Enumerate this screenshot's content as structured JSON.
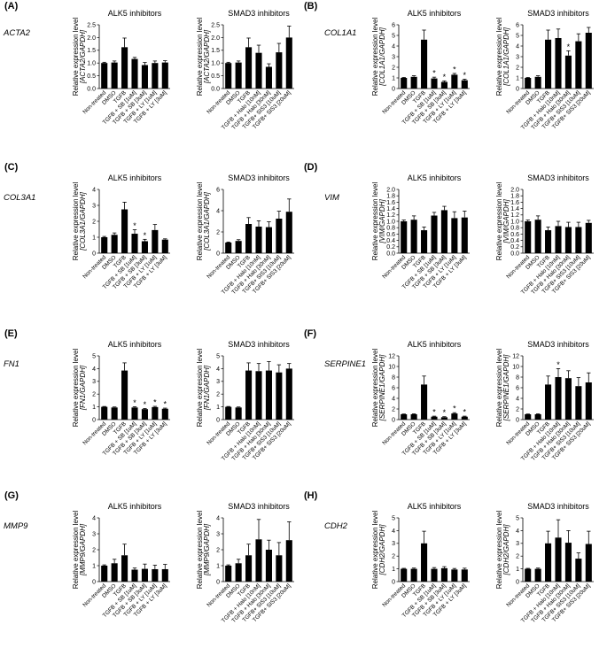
{
  "figure": {
    "ylabel_line1": "Relative expression level",
    "alk5_title": "ALK5 inhibitors",
    "smad3_title": "SMAD3 inhibitors"
  },
  "panels": [
    {
      "label": "(A)",
      "gene": "ACTA2",
      "ylabel": "[ACTA2/GAPDH]"
    },
    {
      "label": "(B)",
      "gene": "COL1A1",
      "ylabel": "[COL1A1/GAPDH]"
    },
    {
      "label": "(C)",
      "gene": "COL3A1",
      "ylabel": "[COL3A1/GAPDH]"
    },
    {
      "label": "(D)",
      "gene": "VIM",
      "ylabel": "[VIM/GAPDH]"
    },
    {
      "label": "(E)",
      "gene": "FN1",
      "ylabel": "[FN1/GAPDH]"
    },
    {
      "label": "(F)",
      "gene": "SERPINE1",
      "ylabel": "[SERPINE1/GAPDH]"
    },
    {
      "label": "(G)",
      "gene": "MMP9",
      "ylabel": "[MMP9/GAPDH]"
    },
    {
      "label": "(H)",
      "gene": "CDH2",
      "ylabel": "[CDH2/GAPDH]"
    }
  ],
  "chart_data": [
    {
      "type": "bar",
      "id": "A-ALK5",
      "title": "ALK5 inhibitors",
      "ylabel": "Relative expression level [ACTA2/GAPDH]",
      "ylim": [
        0,
        2.5
      ],
      "ticks": [
        0,
        0.5,
        1.0,
        1.5,
        2.0,
        2.5
      ],
      "categories": [
        "Non-treated",
        "DMSO",
        "TGFB",
        "TGFB + SB [1uM]",
        "TGFB + SB [3uM]",
        "TGFB + LY [1uM]",
        "TGFB + LY [3uM]"
      ],
      "values": [
        1.0,
        1.02,
        1.62,
        1.16,
        0.92,
        1.0,
        1.02
      ],
      "errors": [
        0.03,
        0.06,
        0.36,
        0.06,
        0.1,
        0.08,
        0.07
      ],
      "significant": [
        false,
        false,
        false,
        false,
        false,
        false,
        false
      ]
    },
    {
      "type": "bar",
      "id": "A-SMAD3",
      "title": "SMAD3 inhibitors",
      "ylabel": "Relative expression level [ACTA2/GAPDH]",
      "ylim": [
        0,
        2.5
      ],
      "ticks": [
        0,
        0.5,
        1.0,
        1.5,
        2.0,
        2.5
      ],
      "categories": [
        "Non-treated",
        "DMSO",
        "TGFB",
        "TGFB + Halo [10nM]",
        "TGFB + Halo [30nM]",
        "TGFB+ SIS3 [10uM]",
        "TGFB+ SIS3 [20uM]"
      ],
      "values": [
        1.0,
        1.02,
        1.62,
        1.4,
        0.85,
        1.42,
        2.0
      ],
      "errors": [
        0.03,
        0.06,
        0.36,
        0.3,
        0.12,
        0.35,
        0.45
      ],
      "significant": [
        false,
        false,
        false,
        false,
        false,
        false,
        false
      ]
    },
    {
      "type": "bar",
      "id": "B-ALK5",
      "title": "ALK5 inhibitors",
      "ylabel": "Relative expression level [COL1A1/GAPDH]",
      "ylim": [
        0,
        6
      ],
      "ticks": [
        0,
        1,
        2,
        3,
        4,
        5,
        6
      ],
      "categories": [
        "Non-treated",
        "DMSO",
        "TGFB",
        "TGFB + SB [1uM]",
        "TGFB + SB [3uM]",
        "TGFB + LY [1uM]",
        "TGFB + LY [3uM]"
      ],
      "values": [
        1.0,
        1.1,
        4.6,
        0.95,
        0.62,
        1.3,
        0.78
      ],
      "errors": [
        0.04,
        0.1,
        0.9,
        0.12,
        0.1,
        0.12,
        0.1
      ],
      "significant": [
        false,
        false,
        false,
        true,
        true,
        true,
        true
      ]
    },
    {
      "type": "bar",
      "id": "B-SMAD3",
      "title": "SMAD3 inhibitors",
      "ylabel": "Relative expression level [COL1A1/GAPDH]",
      "ylim": [
        0,
        6
      ],
      "ticks": [
        0,
        1,
        2,
        3,
        4,
        5,
        6
      ],
      "categories": [
        "Non-treated",
        "DMSO",
        "TGFB",
        "TGFB + Halo [10nM]",
        "TGFB + Halo [30nM]",
        "TGFB+ SIS3 [10uM]",
        "TGFB+ SIS3 [20uM]"
      ],
      "values": [
        1.0,
        1.1,
        4.6,
        4.75,
        3.1,
        4.45,
        5.25
      ],
      "errors": [
        0.04,
        0.1,
        0.9,
        0.85,
        0.45,
        0.7,
        0.5
      ],
      "significant": [
        false,
        false,
        false,
        false,
        true,
        false,
        false
      ]
    },
    {
      "type": "bar",
      "id": "C-ALK5",
      "title": "ALK5 inhibitors",
      "ylabel": "Relative expression level [COL3A1/GAPDH]",
      "ylim": [
        0,
        4
      ],
      "ticks": [
        0,
        1,
        2,
        3,
        4
      ],
      "categories": [
        "Non-treated",
        "DMSO",
        "TGFB",
        "TGFB + SB [1uM]",
        "TGFB + SB [3uM]",
        "TGFB + LY [1uM]",
        "TGFB + LY [3uM]"
      ],
      "values": [
        1.0,
        1.15,
        2.75,
        1.22,
        0.75,
        1.45,
        0.85
      ],
      "errors": [
        0.05,
        0.12,
        0.45,
        0.25,
        0.12,
        0.35,
        0.05
      ],
      "significant": [
        false,
        false,
        false,
        true,
        true,
        false,
        false
      ]
    },
    {
      "type": "bar",
      "id": "C-SMAD3",
      "title": "SMAD3 inhibitors",
      "ylabel": "Relative expression level [COL3A1/GAPDH]",
      "ylim": [
        0,
        6
      ],
      "ticks": [
        0,
        2,
        4,
        6
      ],
      "categories": [
        "Non-treated",
        "DMSO",
        "TGFB",
        "TGFB + Halo [10nM]",
        "TGFB + Halo [30nM]",
        "TGFB+ SIS3 [10uM]",
        "TGFB+ SIS3 [20uM]"
      ],
      "values": [
        1.0,
        1.15,
        2.75,
        2.5,
        2.45,
        3.25,
        3.9
      ],
      "errors": [
        0.05,
        0.12,
        0.6,
        0.55,
        0.5,
        0.7,
        1.2
      ],
      "significant": [
        false,
        false,
        false,
        false,
        false,
        false,
        false
      ]
    },
    {
      "type": "bar",
      "id": "D-ALK5",
      "title": "ALK5 inhibitors",
      "ylabel": "Relative expression level [VIM/GAPDH]",
      "ylim": [
        0,
        2.0
      ],
      "ticks": [
        0,
        0.2,
        0.4,
        0.6,
        0.8,
        1.0,
        1.2,
        1.4,
        1.6,
        1.8,
        2.0
      ],
      "categories": [
        "Non-treated",
        "DMSO",
        "TGFB",
        "TGFB + SB [1uM]",
        "TGFB + SB [3uM]",
        "TGFB + LY [1uM]",
        "TGFB + LY [3uM]"
      ],
      "values": [
        1.0,
        1.05,
        0.72,
        1.18,
        1.35,
        1.1,
        1.12
      ],
      "errors": [
        0.04,
        0.12,
        0.1,
        0.1,
        0.12,
        0.2,
        0.2
      ],
      "significant": [
        false,
        false,
        false,
        false,
        false,
        false,
        false
      ]
    },
    {
      "type": "bar",
      "id": "D-SMAD3",
      "title": "SMAD3 inhibitors",
      "ylabel": "Relative expression level [VIM/GAPDH]",
      "ylim": [
        0,
        2.0
      ],
      "ticks": [
        0,
        0.2,
        0.4,
        0.6,
        0.8,
        1.0,
        1.2,
        1.4,
        1.6,
        1.8,
        2.0
      ],
      "categories": [
        "Non-treated",
        "DMSO",
        "TGFB",
        "TGFB + Halo [10nM]",
        "TGFB + Halo [30nM]",
        "TGFB+ SIS3 [10uM]",
        "TGFB+ SIS3 [20uM]"
      ],
      "values": [
        1.0,
        1.05,
        0.72,
        0.85,
        0.82,
        0.82,
        0.95
      ],
      "errors": [
        0.04,
        0.12,
        0.1,
        0.15,
        0.15,
        0.15,
        0.08
      ],
      "significant": [
        false,
        false,
        false,
        false,
        false,
        false,
        false
      ]
    },
    {
      "type": "bar",
      "id": "E-ALK5",
      "title": "ALK5 inhibitors",
      "ylabel": "Relative expression level [FN1/GAPDH]",
      "ylim": [
        0,
        5
      ],
      "ticks": [
        0,
        1,
        2,
        3,
        4,
        5
      ],
      "categories": [
        "Non-treated",
        "DMSO",
        "TGFB",
        "TGFB + SB [1uM]",
        "TGFB + SB [3uM]",
        "TGFB + LY [1uM]",
        "TGFB + LY [3uM]"
      ],
      "values": [
        1.0,
        0.95,
        3.85,
        0.95,
        0.82,
        0.98,
        0.85
      ],
      "errors": [
        0.03,
        0.04,
        0.6,
        0.06,
        0.05,
        0.06,
        0.05
      ],
      "significant": [
        false,
        false,
        false,
        true,
        true,
        true,
        true
      ]
    },
    {
      "type": "bar",
      "id": "E-SMAD3",
      "title": "SMAD3 inhibitors",
      "ylabel": "Relative expression level [FN1/GAPDH]",
      "ylim": [
        0,
        5
      ],
      "ticks": [
        0,
        1,
        2,
        3,
        4,
        5
      ],
      "categories": [
        "Non-treated",
        "DMSO",
        "TGFB",
        "TGFB + Halo [10nM]",
        "TGFB + Halo [30nM]",
        "TGFB+ SIS3 [10uM]",
        "TGFB+ SIS3 [20uM]"
      ],
      "values": [
        1.0,
        0.95,
        3.85,
        3.8,
        3.85,
        3.7,
        4.0
      ],
      "errors": [
        0.03,
        0.04,
        0.6,
        0.6,
        0.7,
        0.6,
        0.4
      ],
      "significant": [
        false,
        false,
        false,
        false,
        false,
        false,
        false
      ]
    },
    {
      "type": "bar",
      "id": "F-ALK5",
      "title": "ALK5 inhibitors",
      "ylabel": "Relative expression level [SERPINE1/GAPDH]",
      "ylim": [
        0,
        12
      ],
      "ticks": [
        0,
        2,
        4,
        6,
        8,
        10,
        12
      ],
      "categories": [
        "Non-treated",
        "DMSO",
        "TGFB",
        "TGFB + SB [1uM]",
        "TGFB + SB [3uM]",
        "TGFB + LY [1uM]",
        "TGFB + LY [3uM]"
      ],
      "values": [
        1.0,
        1.0,
        6.6,
        0.55,
        0.45,
        1.15,
        0.55
      ],
      "errors": [
        0.05,
        0.08,
        1.6,
        0.1,
        0.1,
        0.15,
        0.1
      ],
      "significant": [
        false,
        false,
        false,
        true,
        true,
        true,
        true
      ]
    },
    {
      "type": "bar",
      "id": "F-SMAD3",
      "title": "SMAD3 inhibitors",
      "ylabel": "Relative expression level [SERPINE1/GAPDH]",
      "ylim": [
        0,
        12
      ],
      "ticks": [
        0,
        2,
        4,
        6,
        8,
        10,
        12
      ],
      "categories": [
        "Non-treated",
        "DMSO",
        "TGFB",
        "TGFB + Halo [10nM]",
        "TGFB + Halo [30nM]",
        "TGFB+ SIS3 [10uM]",
        "TGFB+ SIS3 [20uM]"
      ],
      "values": [
        1.0,
        1.0,
        6.6,
        8.0,
        7.8,
        6.3,
        7.0
      ],
      "errors": [
        0.05,
        0.08,
        1.6,
        1.6,
        1.4,
        1.6,
        1.8
      ],
      "significant": [
        false,
        false,
        false,
        true,
        false,
        false,
        false
      ]
    },
    {
      "type": "bar",
      "id": "G-ALK5",
      "title": "ALK5 inhibitors",
      "ylabel": "Relative expression level [MMP9/GAPDH]",
      "ylim": [
        0,
        4
      ],
      "ticks": [
        0,
        1,
        2,
        3,
        4
      ],
      "categories": [
        "Non-treated",
        "DMSO",
        "TGFB",
        "TGFB + SB [1uM]",
        "TGFB + SB [3uM]",
        "TGFB + LY [1uM]",
        "TGFB + LY [3uM]"
      ],
      "values": [
        1.0,
        1.15,
        1.65,
        0.75,
        0.8,
        0.78,
        0.78
      ],
      "errors": [
        0.05,
        0.25,
        0.7,
        0.1,
        0.3,
        0.25,
        0.3
      ],
      "significant": [
        false,
        false,
        false,
        false,
        false,
        false,
        false
      ]
    },
    {
      "type": "bar",
      "id": "G-SMAD3",
      "title": "SMAD3 inhibitors",
      "ylabel": "Relative expression level [MMP9/GAPDH]",
      "ylim": [
        0,
        4
      ],
      "ticks": [
        0,
        1,
        2,
        3,
        4
      ],
      "categories": [
        "Non-treated",
        "DMSO",
        "TGFB",
        "TGFB + Halo [10nM]",
        "TGFB + Halo [30nM]",
        "TGFB+ SIS3 [10uM]",
        "TGFB+ SIS3 [20uM]"
      ],
      "values": [
        1.0,
        1.15,
        1.65,
        2.65,
        2.0,
        1.65,
        2.6
      ],
      "errors": [
        0.05,
        0.25,
        0.7,
        1.25,
        0.6,
        0.8,
        1.15
      ],
      "significant": [
        false,
        false,
        false,
        false,
        false,
        false,
        false
      ]
    },
    {
      "type": "bar",
      "id": "H-ALK5",
      "title": "ALK5 inhibitors",
      "ylabel": "Relative expression level [CDH2/GAPDH]",
      "ylim": [
        0,
        5
      ],
      "ticks": [
        0,
        1,
        2,
        3,
        4,
        5
      ],
      "categories": [
        "Non-treated",
        "DMSO",
        "TGFB",
        "TGFB + SB [1uM]",
        "TGFB + SB [3uM]",
        "TGFB + LY [1uM]",
        "TGFB + LY [3uM]"
      ],
      "values": [
        1.0,
        1.0,
        3.0,
        1.0,
        1.05,
        0.95,
        0.95
      ],
      "errors": [
        0.04,
        0.06,
        0.95,
        0.1,
        0.12,
        0.08,
        0.1
      ],
      "significant": [
        false,
        false,
        false,
        false,
        false,
        false,
        false
      ]
    },
    {
      "type": "bar",
      "id": "H-SMAD3",
      "title": "SMAD3 inhibitors",
      "ylabel": "Relative expression level [CDH2/GAPDH]",
      "ylim": [
        0,
        5
      ],
      "ticks": [
        0,
        1,
        2,
        3,
        4,
        5
      ],
      "categories": [
        "Non-treated",
        "DMSO",
        "TGFB",
        "TGFB + Halo [10nM]",
        "TGFB + Halo [30nM]",
        "TGFB+ SIS3 [10uM]",
        "TGFB+ SIS3 [20uM]"
      ],
      "values": [
        1.0,
        1.0,
        3.0,
        3.45,
        3.05,
        1.8,
        2.95
      ],
      "errors": [
        0.04,
        0.06,
        0.95,
        1.4,
        0.95,
        0.45,
        1.0
      ],
      "significant": [
        false,
        false,
        false,
        false,
        false,
        false,
        false
      ]
    }
  ]
}
